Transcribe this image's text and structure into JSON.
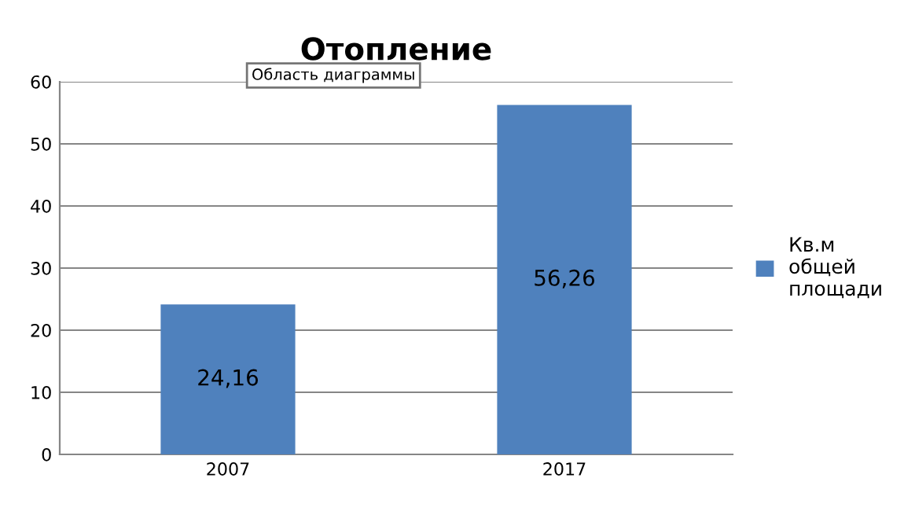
{
  "chart_data": {
    "type": "bar",
    "title": "Отопление",
    "categories": [
      "2007",
      "2017"
    ],
    "series": [
      {
        "name": "Кв.м\nобщей\nплощади",
        "color": "#4f81bd",
        "values": [
          24.16,
          56.26
        ],
        "value_labels": [
          "24,16",
          "56,26"
        ]
      }
    ],
    "ylim": [
      0,
      60
    ],
    "yticks": [
      0,
      10,
      20,
      30,
      40,
      50,
      60
    ],
    "grid": "y",
    "legend": "right",
    "annotations": [
      "Область диаграммы"
    ]
  }
}
